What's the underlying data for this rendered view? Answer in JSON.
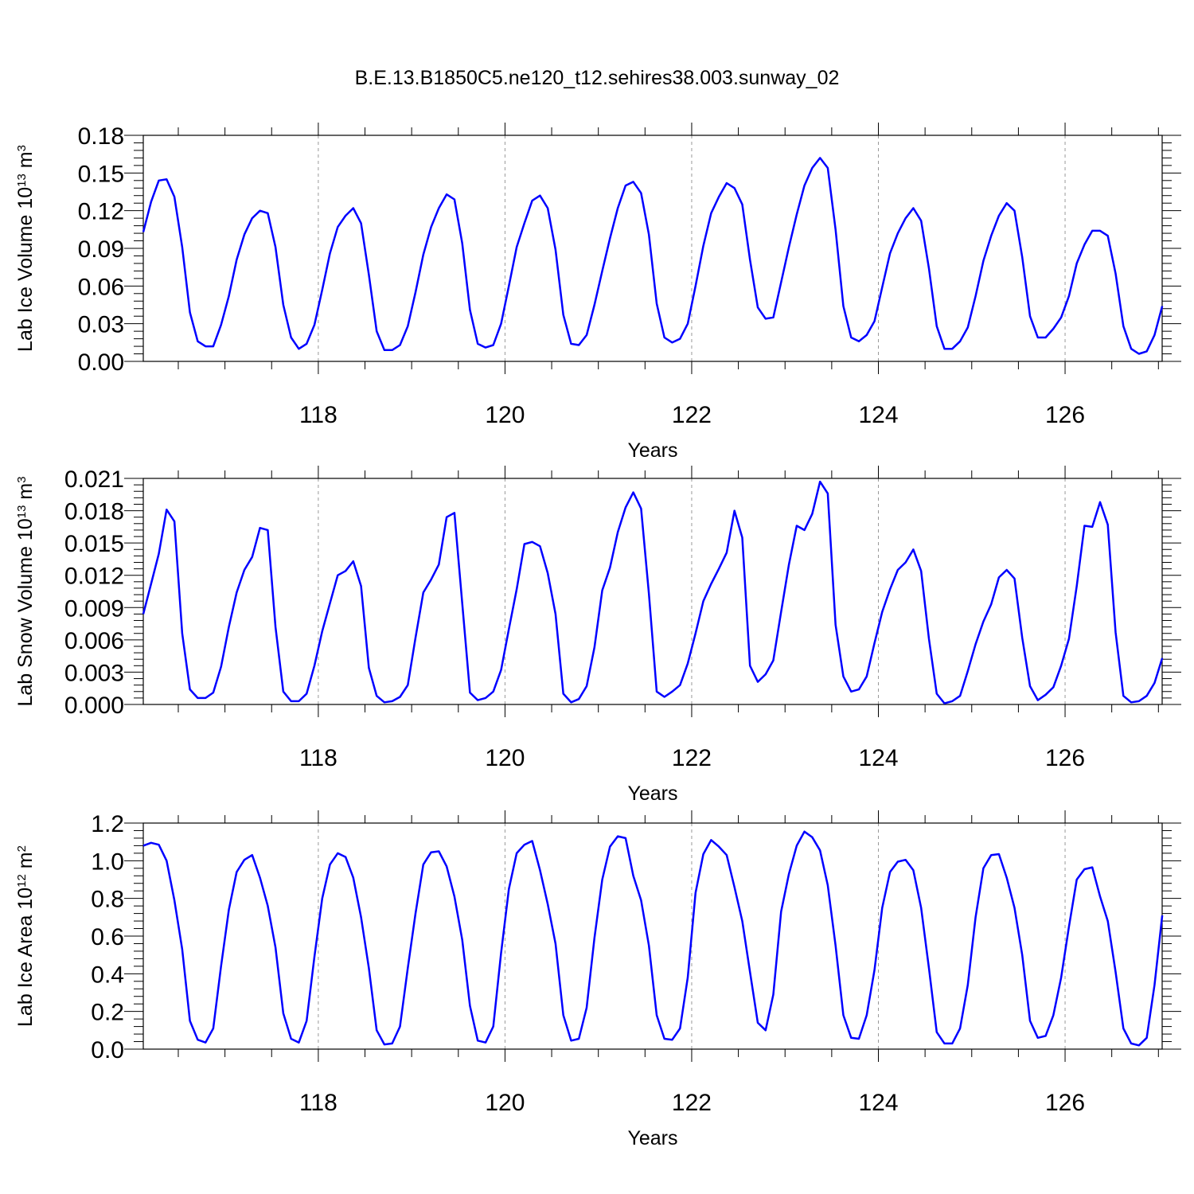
{
  "title": "B.E.13.B1850C5.ne120_t12.sehires38.003.sunway_02",
  "colors": {
    "series": "#0000ff",
    "grid": "#999999",
    "axis": "#000000"
  },
  "chart_data": [
    {
      "type": "line",
      "ylabel": "Lab Ice Volume 10",
      "ylabel_sup": "13",
      "ylabel_unit": " m",
      "ylabel_unit_sup": "3",
      "xlabel": "Years",
      "xlim": [
        116.125,
        127.04
      ],
      "ylim": [
        0,
        0.18
      ],
      "yticks": [
        "0.00",
        "0.03",
        "0.06",
        "0.09",
        "0.12",
        "0.15",
        "0.18"
      ],
      "xticks": [
        "118",
        "120",
        "122",
        "124",
        "126"
      ],
      "grid": "vertical dashed at labeled years",
      "x_start": 116.125,
      "x_step": 0.08333,
      "values": [
        0.103,
        0.127,
        0.144,
        0.145,
        0.131,
        0.091,
        0.039,
        0.016,
        0.012,
        0.012,
        0.029,
        0.052,
        0.081,
        0.101,
        0.114,
        0.12,
        0.118,
        0.091,
        0.045,
        0.019,
        0.01,
        0.014,
        0.029,
        0.057,
        0.086,
        0.107,
        0.116,
        0.122,
        0.11,
        0.069,
        0.024,
        0.009,
        0.009,
        0.013,
        0.028,
        0.055,
        0.085,
        0.107,
        0.122,
        0.133,
        0.129,
        0.094,
        0.041,
        0.014,
        0.011,
        0.013,
        0.03,
        0.06,
        0.091,
        0.11,
        0.128,
        0.132,
        0.122,
        0.089,
        0.037,
        0.014,
        0.013,
        0.021,
        0.045,
        0.072,
        0.098,
        0.122,
        0.14,
        0.143,
        0.134,
        0.101,
        0.046,
        0.019,
        0.015,
        0.018,
        0.03,
        0.06,
        0.092,
        0.118,
        0.131,
        0.142,
        0.138,
        0.125,
        0.081,
        0.043,
        0.034,
        0.035,
        0.063,
        0.091,
        0.117,
        0.14,
        0.154,
        0.162,
        0.154,
        0.105,
        0.044,
        0.019,
        0.016,
        0.021,
        0.032,
        0.059,
        0.086,
        0.102,
        0.114,
        0.122,
        0.112,
        0.074,
        0.028,
        0.01,
        0.01,
        0.016,
        0.027,
        0.052,
        0.08,
        0.1,
        0.116,
        0.126,
        0.12,
        0.083,
        0.036,
        0.019,
        0.019,
        0.026,
        0.035,
        0.052,
        0.078,
        0.093,
        0.104,
        0.104,
        0.1,
        0.07,
        0.028,
        0.01,
        0.006,
        0.008,
        0.021,
        0.044
      ]
    },
    {
      "type": "line",
      "ylabel": "Lab Snow Volume 10",
      "ylabel_sup": "13",
      "ylabel_unit": " m",
      "ylabel_unit_sup": "3",
      "xlabel": "Years",
      "xlim": [
        116.125,
        127.04
      ],
      "ylim": [
        0,
        0.021
      ],
      "yticks": [
        "0.000",
        "0.003",
        "0.006",
        "0.009",
        "0.012",
        "0.015",
        "0.018",
        "0.021"
      ],
      "xticks": [
        "118",
        "120",
        "122",
        "124",
        "126"
      ],
      "grid": "vertical dashed at labeled years",
      "x_start": 116.125,
      "x_step": 0.08333,
      "values": [
        0.0084,
        0.0112,
        0.014,
        0.0181,
        0.017,
        0.0066,
        0.0014,
        0.0006,
        0.0006,
        0.0011,
        0.0035,
        0.0072,
        0.0104,
        0.0125,
        0.0137,
        0.0164,
        0.0162,
        0.0072,
        0.0012,
        0.0003,
        0.0003,
        0.001,
        0.0036,
        0.0068,
        0.0094,
        0.012,
        0.0124,
        0.0133,
        0.011,
        0.0034,
        0.0008,
        0.0002,
        0.0003,
        0.0007,
        0.0018,
        0.0062,
        0.0104,
        0.0116,
        0.013,
        0.0174,
        0.0178,
        0.0094,
        0.0011,
        0.0004,
        0.0006,
        0.0012,
        0.0032,
        0.007,
        0.0107,
        0.0149,
        0.0151,
        0.0147,
        0.0122,
        0.0084,
        0.001,
        0.0002,
        0.0005,
        0.0017,
        0.0053,
        0.0106,
        0.0127,
        0.016,
        0.0183,
        0.0197,
        0.0182,
        0.0103,
        0.0012,
        0.0007,
        0.0012,
        0.0018,
        0.0038,
        0.0066,
        0.0096,
        0.0112,
        0.0126,
        0.0141,
        0.018,
        0.0155,
        0.0036,
        0.0021,
        0.0028,
        0.0041,
        0.0086,
        0.013,
        0.0166,
        0.0162,
        0.0177,
        0.0207,
        0.0196,
        0.0074,
        0.0026,
        0.0012,
        0.0014,
        0.0026,
        0.0057,
        0.0086,
        0.0107,
        0.0125,
        0.0132,
        0.0144,
        0.0124,
        0.0061,
        0.001,
        0.0001,
        0.0003,
        0.0008,
        0.0031,
        0.0056,
        0.0077,
        0.0093,
        0.0118,
        0.0125,
        0.0117,
        0.0062,
        0.0017,
        0.0004,
        0.0009,
        0.0016,
        0.0036,
        0.0061,
        0.011,
        0.0166,
        0.0165,
        0.0188,
        0.0167,
        0.0067,
        0.0008,
        0.0002,
        0.0003,
        0.0008,
        0.002,
        0.0043
      ]
    },
    {
      "type": "line",
      "ylabel": "Lab Ice Area 10",
      "ylabel_sup": "12",
      "ylabel_unit": " m",
      "ylabel_unit_sup": "2",
      "xlabel": "Years",
      "xlim": [
        116.125,
        127.04
      ],
      "ylim": [
        0,
        1.2
      ],
      "yticks": [
        "0.0",
        "0.2",
        "0.4",
        "0.6",
        "0.8",
        "1.0",
        "1.2"
      ],
      "xticks": [
        "118",
        "120",
        "122",
        "124",
        "126"
      ],
      "grid": "vertical dashed at labeled years",
      "x_start": 116.125,
      "x_step": 0.08333,
      "values": [
        1.08,
        1.095,
        1.085,
        1.0,
        0.79,
        0.53,
        0.15,
        0.05,
        0.035,
        0.11,
        0.44,
        0.74,
        0.94,
        1.005,
        1.03,
        0.91,
        0.76,
        0.54,
        0.19,
        0.055,
        0.035,
        0.15,
        0.49,
        0.8,
        0.98,
        1.04,
        1.02,
        0.91,
        0.7,
        0.43,
        0.1,
        0.025,
        0.03,
        0.12,
        0.43,
        0.72,
        0.98,
        1.045,
        1.05,
        0.97,
        0.81,
        0.58,
        0.23,
        0.045,
        0.035,
        0.12,
        0.51,
        0.85,
        1.04,
        1.085,
        1.105,
        0.95,
        0.77,
        0.56,
        0.18,
        0.045,
        0.055,
        0.22,
        0.59,
        0.9,
        1.075,
        1.13,
        1.12,
        0.92,
        0.79,
        0.55,
        0.18,
        0.055,
        0.05,
        0.11,
        0.38,
        0.83,
        1.035,
        1.11,
        1.075,
        1.03,
        0.86,
        0.68,
        0.41,
        0.14,
        0.1,
        0.29,
        0.73,
        0.93,
        1.08,
        1.155,
        1.125,
        1.055,
        0.87,
        0.55,
        0.18,
        0.06,
        0.055,
        0.18,
        0.42,
        0.75,
        0.94,
        0.995,
        1.005,
        0.95,
        0.75,
        0.43,
        0.09,
        0.03,
        0.03,
        0.11,
        0.34,
        0.7,
        0.96,
        1.03,
        1.035,
        0.91,
        0.75,
        0.5,
        0.15,
        0.06,
        0.07,
        0.18,
        0.38,
        0.65,
        0.9,
        0.955,
        0.965,
        0.81,
        0.68,
        0.41,
        0.11,
        0.03,
        0.02,
        0.06,
        0.34,
        0.71
      ]
    }
  ]
}
